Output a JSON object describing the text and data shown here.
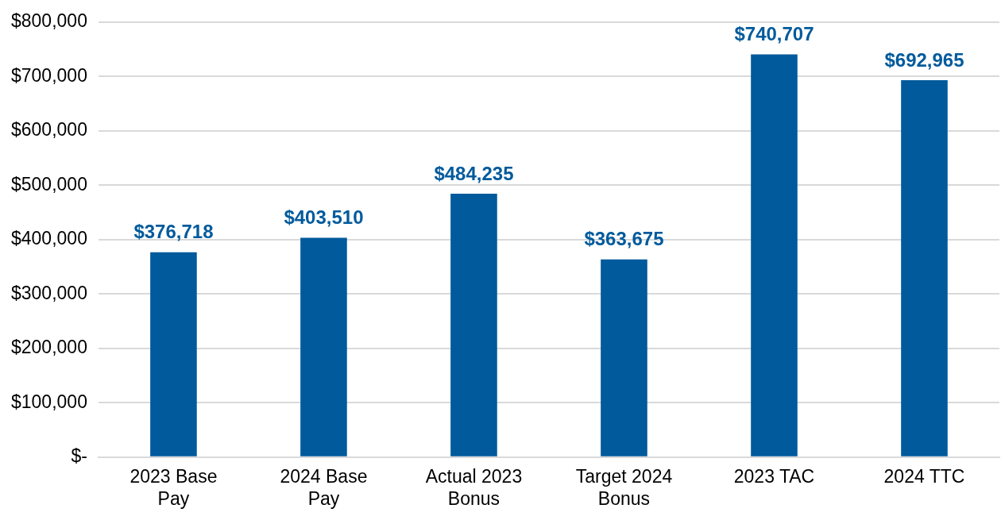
{
  "chart_data": {
    "type": "bar",
    "categories": [
      "2023 Base Pay",
      "2024 Base Pay",
      "Actual 2023 Bonus",
      "Target 2024 Bonus",
      "2023 TAC",
      "2024 TTC"
    ],
    "values": [
      376718,
      403510,
      484235,
      363675,
      740707,
      692965
    ],
    "value_labels": [
      "$376,718",
      "$403,510",
      "$484,235",
      "$363,675",
      "$740,707",
      "$692,965"
    ],
    "color": "#005a9c",
    "ylim": [
      0,
      800000
    ],
    "yticks": [
      {
        "value": 0,
        "label": "$-"
      },
      {
        "value": 100000,
        "label": "$100,000"
      },
      {
        "value": 200000,
        "label": "$200,000"
      },
      {
        "value": 300000,
        "label": "$300,000"
      },
      {
        "value": 400000,
        "label": "$400,000"
      },
      {
        "value": 500000,
        "label": "$500,000"
      },
      {
        "value": 600000,
        "label": "$600,000"
      },
      {
        "value": 700000,
        "label": "$700,000"
      },
      {
        "value": 800000,
        "label": "$800,000"
      }
    ],
    "grid": "y",
    "legend": false
  }
}
